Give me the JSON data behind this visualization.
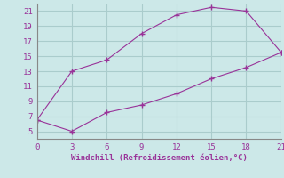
{
  "line1_x": [
    0,
    3,
    6,
    9,
    12,
    15,
    18,
    21
  ],
  "line1_y": [
    6.5,
    13,
    14.5,
    18,
    20.5,
    21.5,
    21,
    15.5
  ],
  "line2_x": [
    0,
    3,
    6,
    9,
    12,
    15,
    18,
    21
  ],
  "line2_y": [
    6.5,
    5,
    7.5,
    8.5,
    10,
    12,
    13.5,
    15.5
  ],
  "line_color": "#993399",
  "bg_color": "#cce8e8",
  "grid_color": "#aacccc",
  "xlabel": "Windchill (Refroidissement éolien,°C)",
  "xlim": [
    0,
    21
  ],
  "ylim": [
    4,
    22
  ],
  "xticks": [
    0,
    3,
    6,
    9,
    12,
    15,
    18,
    21
  ],
  "yticks": [
    5,
    7,
    9,
    11,
    13,
    15,
    17,
    19,
    21
  ],
  "xlabel_color": "#993399",
  "tick_color": "#993399",
  "marker": "+"
}
